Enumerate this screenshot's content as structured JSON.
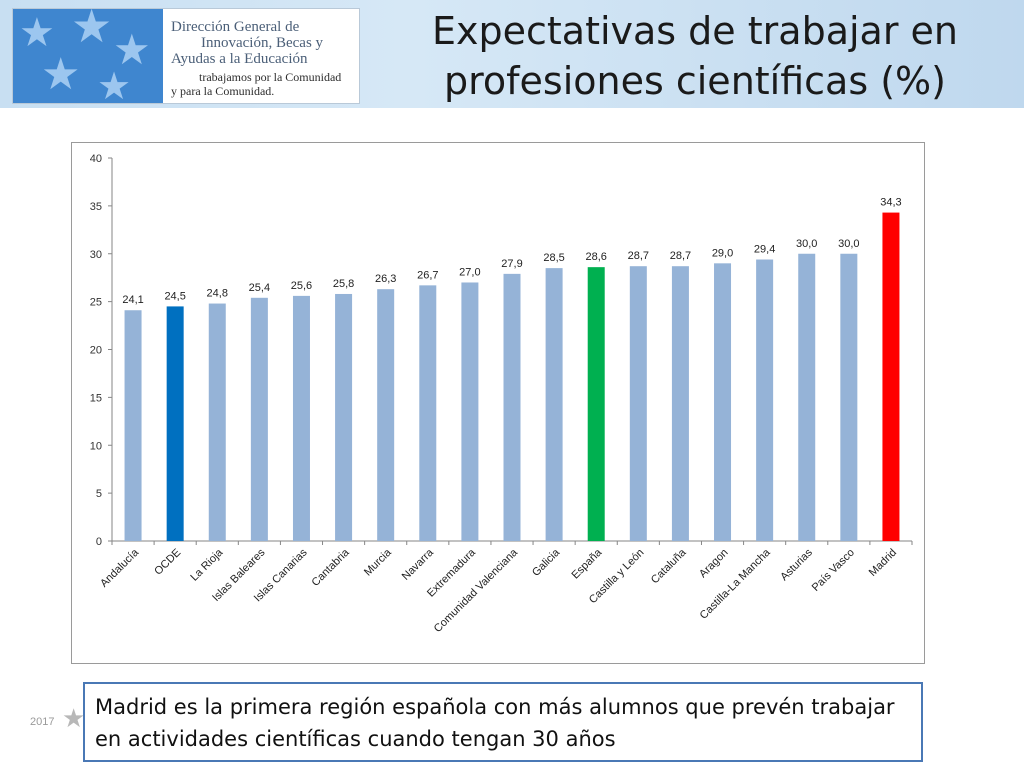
{
  "header": {
    "logo": {
      "line1": "Dirección General de",
      "line2": "Innovación, Becas y",
      "line3": "Ayudas a la Educación",
      "line4": "trabajamos por la Comunidad",
      "line5": "y para la Comunidad."
    },
    "title": "Expectativas de trabajar en profesiones científicas (%)"
  },
  "chart_data": {
    "type": "bar",
    "categories": [
      "Andalucía",
      "OCDE",
      "La Rioja",
      "Islas Baleares",
      "Islas Canarias",
      "Cantabria",
      "Murcia",
      "Navarra",
      "Extremadura",
      "Comunidad Valenciana",
      "Galicia",
      "España",
      "Castilla y León",
      "Cataluña",
      "Aragon",
      "Castilla-La Mancha",
      "Asturias",
      "País Vasco",
      "Madrid"
    ],
    "values": [
      24.1,
      24.5,
      24.8,
      25.4,
      25.6,
      25.8,
      26.3,
      26.7,
      27.0,
      27.9,
      28.5,
      28.6,
      28.7,
      28.7,
      29.0,
      29.4,
      30.0,
      30.0,
      34.3
    ],
    "value_labels": [
      "24,1",
      "24,5",
      "24,8",
      "25,4",
      "25,6",
      "25,8",
      "26,3",
      "26,7",
      "27,0",
      "27,9",
      "28,5",
      "28,6",
      "28,7",
      "28,7",
      "29,0",
      "29,4",
      "30,0",
      "30,0",
      "34,3"
    ],
    "colors": [
      "#95b3d7",
      "#0070c0",
      "#95b3d7",
      "#95b3d7",
      "#95b3d7",
      "#95b3d7",
      "#95b3d7",
      "#95b3d7",
      "#95b3d7",
      "#95b3d7",
      "#95b3d7",
      "#00b050",
      "#95b3d7",
      "#95b3d7",
      "#95b3d7",
      "#95b3d7",
      "#95b3d7",
      "#95b3d7",
      "#ff0000"
    ],
    "ylim": [
      0,
      40
    ],
    "yticks": [
      0,
      5,
      10,
      15,
      20,
      25,
      30,
      35,
      40
    ],
    "grid": false,
    "legend": "none"
  },
  "footer": {
    "year": "2017",
    "callout": "Madrid es la primera región española con más alumnos que prevén trabajar en actividades científicas cuando tengan 30 años"
  }
}
